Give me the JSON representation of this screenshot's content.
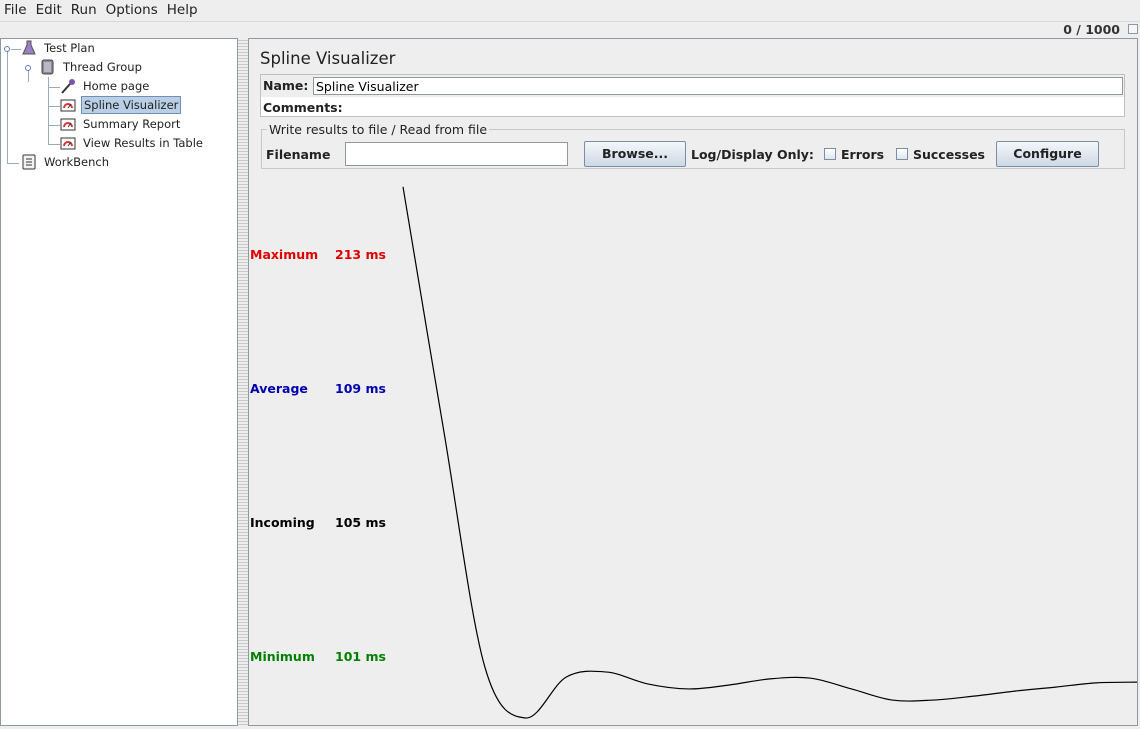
{
  "menu": [
    "File",
    "Edit",
    "Run",
    "Options",
    "Help"
  ],
  "toolbar": {
    "counter": "0 / 1000"
  },
  "tree": {
    "test_plan": "Test Plan",
    "thread_group": "Thread Group",
    "home_page": "Home page",
    "spline_visualizer": "Spline Visualizer",
    "summary_report": "Summary Report",
    "view_results": "View Results in Table",
    "workbench": "WorkBench"
  },
  "panel": {
    "title": "Spline Visualizer",
    "name_label": "Name:",
    "name_value": "Spline Visualizer",
    "comments_label": "Comments:",
    "file_section": "Write results to file / Read from file",
    "filename_label": "Filename",
    "filename_value": "",
    "browse": "Browse...",
    "log_display": "Log/Display Only:",
    "errors": "Errors",
    "successes": "Successes",
    "configure": "Configure"
  },
  "stats": {
    "maximum_label": "Maximum",
    "maximum_value": "213 ms",
    "maximum_color": "#e00000",
    "average_label": "Average",
    "average_value": "109 ms",
    "average_color": "#0000b0",
    "incoming_label": "Incoming",
    "incoming_value": "105 ms",
    "incoming_color": "#000000",
    "minimum_label": "Minimum",
    "minimum_value": "101 ms",
    "minimum_color": "#008000"
  },
  "chart_data": {
    "type": "line",
    "unit": "ms",
    "values": [
      232,
      164,
      98.5,
      84,
      95.4,
      96.8,
      93.5,
      92.1,
      93.2,
      94.9,
      95.1,
      92.1,
      89,
      89,
      90.1,
      91.5,
      92.6,
      93.8,
      94
    ]
  }
}
